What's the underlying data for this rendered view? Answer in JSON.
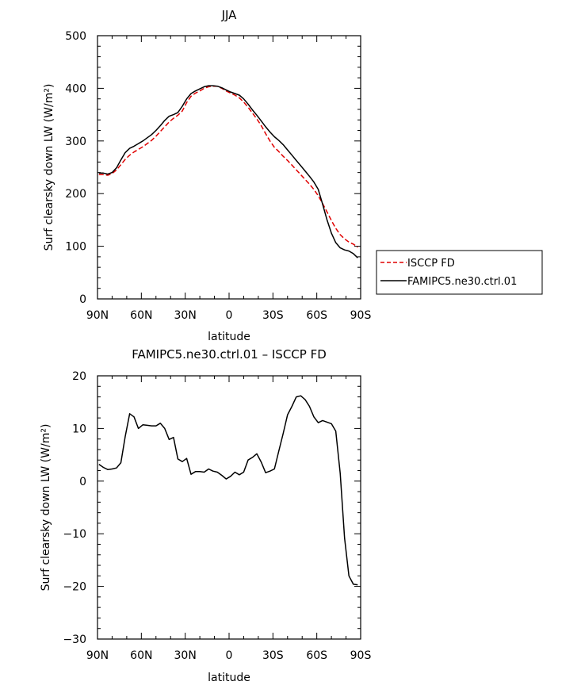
{
  "chart_data": [
    {
      "type": "line",
      "title": "JJA",
      "xlabel": "latitude",
      "ylabel": "Surf clearsky down LW (W/m²)",
      "xlim": [
        90,
        -90
      ],
      "ylim": [
        0,
        500
      ],
      "xticks": [
        90,
        60,
        30,
        0,
        -30,
        -60,
        -90
      ],
      "xtick_labels": [
        "90N",
        "60N",
        "30N",
        "0",
        "30S",
        "60S",
        "90S"
      ],
      "yticks": [
        0,
        100,
        200,
        300,
        400,
        500
      ],
      "ytick_labels": [
        "0",
        "100",
        "200",
        "300",
        "400",
        "500"
      ],
      "legend": "right",
      "series": [
        {
          "name": "ISCCP FD",
          "color": "#e00000",
          "dash": "dashed",
          "x": [
            89,
            86,
            83,
            80,
            77,
            74,
            71,
            68,
            65,
            62,
            59,
            56,
            53,
            50,
            47,
            44,
            41,
            38,
            35,
            32,
            29,
            26,
            23,
            20,
            17,
            14,
            11,
            8,
            5,
            2,
            -1,
            -4,
            -7,
            -10,
            -13,
            -16,
            -19,
            -22,
            -25,
            -28,
            -31,
            -34,
            -37,
            -40,
            -43,
            -46,
            -49,
            -52,
            -55,
            -58,
            -61,
            -64,
            -67,
            -70,
            -73,
            -76,
            -79,
            -82,
            -85,
            -88
          ],
          "y": [
            236,
            236,
            235,
            238,
            245,
            255,
            265,
            273,
            279,
            284,
            289,
            295,
            301,
            309,
            318,
            327,
            336,
            343,
            349,
            357,
            373,
            385,
            391,
            395,
            400,
            403,
            404,
            404,
            400,
            395,
            391,
            387,
            382,
            374,
            364,
            353,
            342,
            329,
            314,
            300,
            288,
            280,
            271,
            263,
            254,
            245,
            236,
            227,
            218,
            208,
            196,
            181,
            165,
            149,
            134,
            122,
            114,
            108,
            104,
            98
          ]
        },
        {
          "name": "FAMIPC5.ne30.ctrl.01",
          "color": "#000000",
          "dash": "solid",
          "x": [
            89,
            86,
            83,
            80,
            77,
            74,
            71,
            68,
            65,
            62,
            59,
            56,
            53,
            50,
            47,
            44,
            41,
            38,
            35,
            32,
            29,
            26,
            23,
            20,
            17,
            14,
            11,
            8,
            5,
            2,
            -1,
            -4,
            -7,
            -10,
            -13,
            -16,
            -19,
            -22,
            -25,
            -28,
            -31,
            -34,
            -37,
            -40,
            -43,
            -46,
            -49,
            -52,
            -55,
            -58,
            -61,
            -64,
            -67,
            -70,
            -73,
            -76,
            -79,
            -82,
            -85,
            -88
          ],
          "y": [
            239,
            239,
            237,
            240,
            249,
            264,
            278,
            286,
            290,
            295,
            300,
            306,
            312,
            320,
            329,
            339,
            347,
            350,
            354,
            366,
            380,
            390,
            395,
            399,
            403,
            405,
            405,
            404,
            401,
            397,
            393,
            390,
            387,
            380,
            370,
            359,
            349,
            338,
            327,
            317,
            308,
            301,
            293,
            283,
            273,
            263,
            253,
            243,
            233,
            222,
            208,
            180,
            150,
            125,
            107,
            97,
            93,
            91,
            86,
            78
          ]
        }
      ]
    },
    {
      "type": "line",
      "title": "FAMIPC5.ne30.ctrl.01 – ISCCP FD",
      "xlabel": "latitude",
      "ylabel": "Surf clearsky down LW (W/m²)",
      "xlim": [
        90,
        -90
      ],
      "ylim": [
        -30,
        20
      ],
      "xticks": [
        90,
        60,
        30,
        0,
        -30,
        -60,
        -90
      ],
      "xtick_labels": [
        "90N",
        "60N",
        "30N",
        "0",
        "30S",
        "60S",
        "90S"
      ],
      "yticks": [
        -30,
        -20,
        -10,
        0,
        10,
        20
      ],
      "ytick_labels": [
        "−30",
        "−20",
        "−10",
        "0",
        "10",
        "20"
      ],
      "series": [
        {
          "color": "#000000",
          "dash": "solid",
          "x": [
            89,
            86,
            83,
            80,
            77,
            74,
            71,
            68,
            65,
            62,
            59,
            56,
            53,
            50,
            47,
            44,
            41,
            38,
            35,
            32,
            29,
            26,
            23,
            20,
            17,
            14,
            11,
            8,
            5,
            2,
            -1,
            -4,
            -7,
            -10,
            -13,
            -16,
            -19,
            -22,
            -25,
            -28,
            -31,
            -34,
            -37,
            -40,
            -43,
            -46,
            -49,
            -52,
            -55,
            -58,
            -61,
            -64,
            -67,
            -70,
            -73,
            -76,
            -79,
            -82,
            -85,
            -88
          ],
          "y": [
            3.2,
            2.6,
            2.2,
            2.3,
            2.5,
            3.5,
            8.5,
            12.8,
            12.2,
            10.0,
            10.7,
            10.6,
            10.5,
            10.5,
            11.0,
            10.0,
            7.9,
            8.3,
            4.2,
            3.7,
            4.3,
            1.3,
            1.8,
            1.8,
            1.7,
            2.3,
            1.9,
            1.7,
            1.1,
            0.4,
            0.9,
            1.7,
            1.2,
            1.7,
            4.0,
            4.5,
            5.2,
            3.6,
            1.6,
            1.9,
            2.3,
            5.7,
            9.0,
            12.6,
            14.2,
            16.0,
            16.2,
            15.5,
            14.2,
            12.2,
            11.1,
            11.5,
            11.2,
            10.9,
            9.5,
            1.5,
            -10.8,
            -18.0,
            -19.6,
            -19.7
          ]
        }
      ]
    }
  ]
}
